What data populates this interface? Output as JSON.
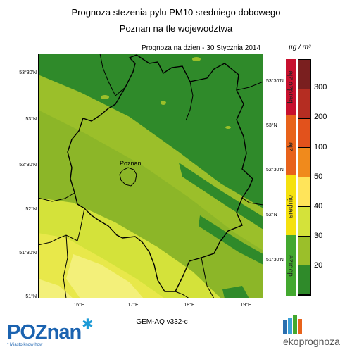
{
  "header": {
    "title_line1": "Prognoza stezenia pylu PM10 sredniego dobowego",
    "title_line2": "Poznan na tle wojewodztwa",
    "forecast_date": "Prognoza na dzien -  30 Stycznia 2014"
  },
  "map": {
    "city_label": "Poznan",
    "lat_ticks_left": [
      "53°30'N",
      "53°N",
      "52°30'N",
      "52°N",
      "51°30'N",
      "51°N"
    ],
    "lat_ticks_right": [
      "53°30'N",
      "53°N",
      "52°30'N",
      "52°N",
      "51°30'N"
    ],
    "lon_ticks": [
      "16°E",
      "17°E",
      "18°E",
      "19°E"
    ],
    "model_label": "GEM-AQ v332-c"
  },
  "legend": {
    "unit": "µg / m³",
    "categories": [
      "bardzo zle",
      "zle",
      "srednio",
      "dobrze"
    ],
    "levels": [
      "300",
      "200",
      "100",
      "50",
      "40",
      "30",
      "20"
    ],
    "colors": {
      "class_bardzo_zle": "#c8102e",
      "class_zle": "#e8631b",
      "class_srednio": "#f5e10f",
      "class_dobrze": "#43a82f",
      "scale": [
        "#7a1f1f",
        "#b52d22",
        "#e2521c",
        "#f08a1c",
        "#ffe45a",
        "#d4e23a",
        "#9bbf2a",
        "#2f8a2a"
      ]
    }
  },
  "logos": {
    "poznan_main": "POZnan",
    "poznan_sub": "* Miasto know-how",
    "ekoprognoza": "ekoprognoza"
  }
}
